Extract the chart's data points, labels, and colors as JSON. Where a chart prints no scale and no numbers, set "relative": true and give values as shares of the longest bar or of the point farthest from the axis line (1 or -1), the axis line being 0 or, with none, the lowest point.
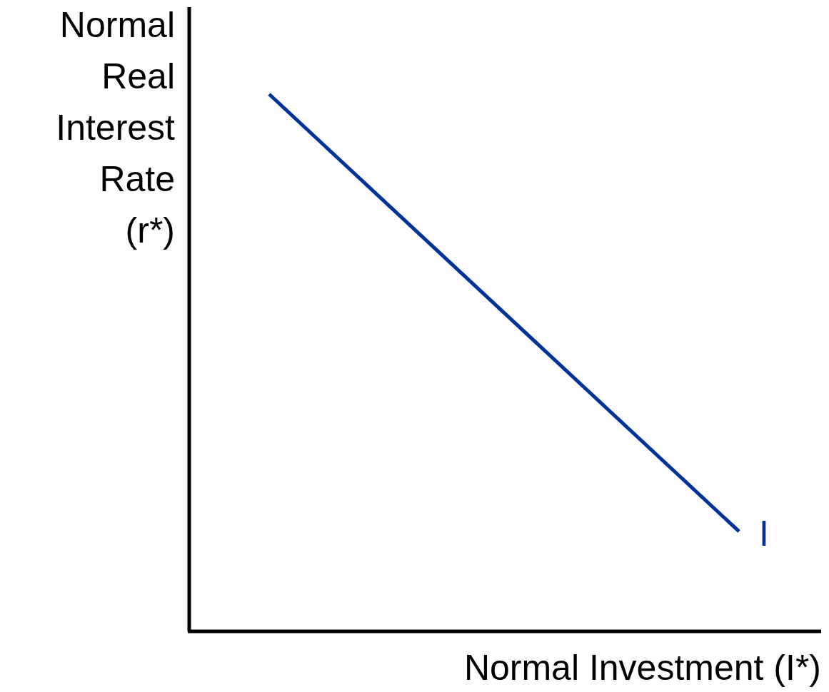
{
  "chart_data": {
    "type": "line",
    "relative": true,
    "xlabel": "Normal Investment (I*)",
    "ylabel": "Normal Real Interest Rate (r*)",
    "categories": [
      null,
      null
    ],
    "series": [
      {
        "name": "I",
        "color": "#003399",
        "values": [
          1,
          0.186
        ]
      }
    ],
    "legend": false,
    "marker": "none",
    "line_style": "solid"
  }
}
